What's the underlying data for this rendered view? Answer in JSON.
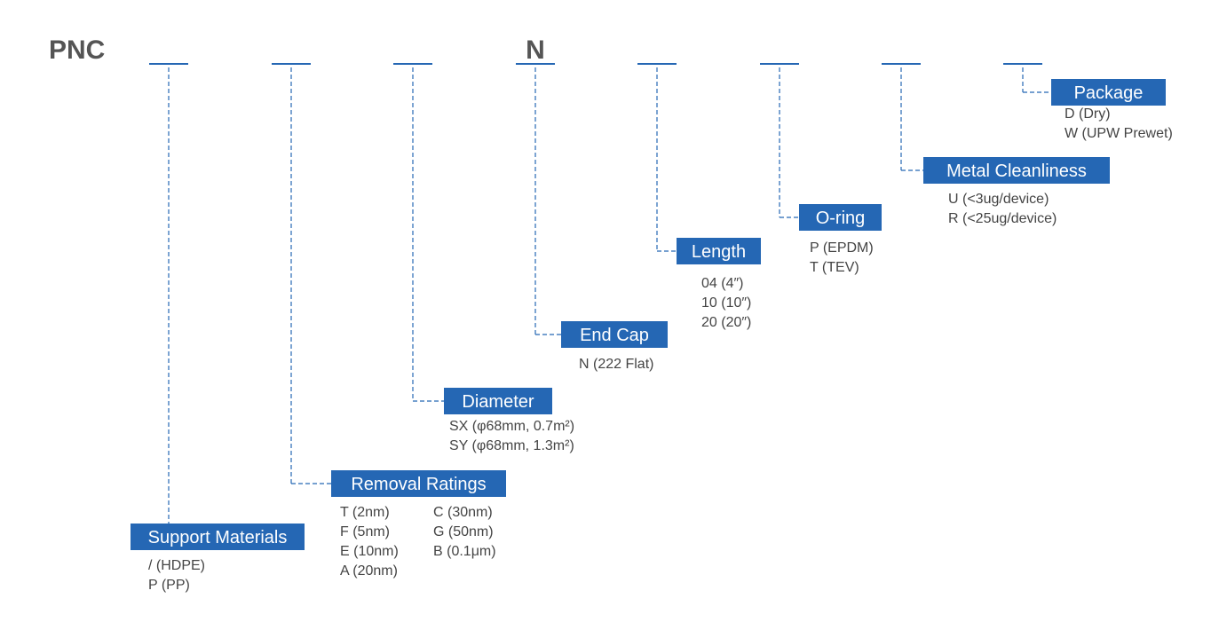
{
  "prefix": "PNC",
  "segments": [
    {
      "code": null,
      "label": "Support Materials",
      "options": [
        "/ (HDPE)",
        "P (PP)"
      ]
    },
    {
      "code": null,
      "label": "Removal Ratings",
      "options": [
        "T (2nm)",
        "F (5nm)",
        "E (10nm)",
        "A (20nm)",
        "C (30nm)",
        "G (50nm)",
        "B (0.1μm)"
      ]
    },
    {
      "code": null,
      "label": "Diameter",
      "options": [
        "SX (φ68mm, 0.7m²)",
        "SY (φ68mm, 1.3m²)"
      ]
    },
    {
      "code": "N",
      "label": "End Cap",
      "options": [
        "N (222 Flat)"
      ]
    },
    {
      "code": null,
      "label": "Length",
      "options": [
        "04 (4″)",
        "10 (10″)",
        "20 (20″)"
      ]
    },
    {
      "code": null,
      "label": "O-ring",
      "options": [
        "P (EPDM)",
        "T (TEV)"
      ]
    },
    {
      "code": null,
      "label": "Metal Cleanliness",
      "options": [
        "U (<3ug/device)",
        "R (<25ug/device)"
      ]
    },
    {
      "code": null,
      "label": "Package",
      "options": [
        "D (Dry)",
        "W (UPW Prewet)"
      ]
    }
  ]
}
